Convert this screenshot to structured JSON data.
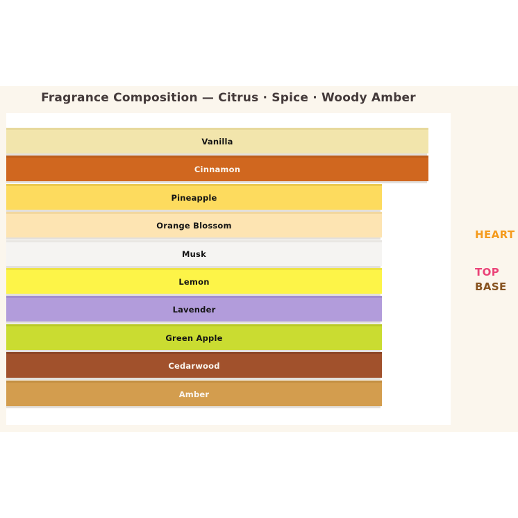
{
  "page": {
    "title": "Fragrance Composition — Citrus · Spice · Woody Amber",
    "band_background": "#FBF6ED",
    "card_background": "#FFFFFF",
    "title_color": "#443A3A",
    "shadow_color": "#E3E0DC"
  },
  "chart_data": {
    "type": "bar",
    "orientation": "horizontal",
    "title": "Fragrance Composition — Citrus · Spice · Woody Amber",
    "categories": [
      "Vanilla",
      "Cinnamon",
      "Pineapple",
      "Orange Blossom",
      "Musk",
      "Lemon",
      "Lavender",
      "Green Apple",
      "Cedarwood",
      "Amber"
    ],
    "values_relative_pct": [
      100,
      100,
      89,
      89,
      89,
      89,
      89,
      89,
      89,
      89
    ],
    "bar_colors": [
      "#F2E5AC",
      "#D0671F",
      "#FDDB5E",
      "#FDE4B2",
      "#F5F4F2",
      "#FDF448",
      "#B29CDB",
      "#CADC31",
      "#A1512C",
      "#D39D4E"
    ],
    "axis": "none",
    "grid": false,
    "legend_position": "right",
    "legend": [
      {
        "label": "HEART",
        "color": "#F59B1D"
      },
      {
        "label": "TOP",
        "color": "#EA4378"
      },
      {
        "label": "BASE",
        "color": "#875320"
      }
    ]
  },
  "notes": [
    {
      "label": "Vanilla",
      "fill": "#F2E5AC",
      "edge": "#E7D99C",
      "text_color": "#141414",
      "length": "608px"
    },
    {
      "label": "Cinnamon",
      "fill": "#D0671F",
      "edge": "#BC5D1A",
      "text_color": "#FAF5EE",
      "length": "608px"
    },
    {
      "label": "Pineapple",
      "fill": "#FDDB5E",
      "edge": "#ECC94E",
      "text_color": "#141414",
      "length": "541px"
    },
    {
      "label": "Orange Blossom",
      "fill": "#FDE4B2",
      "edge": "#F2D79E",
      "text_color": "#141414",
      "length": "541px"
    },
    {
      "label": "Musk",
      "fill": "#F5F4F2",
      "edge": "#E8E6E2",
      "text_color": "#141414",
      "length": "541px"
    },
    {
      "label": "Lemon",
      "fill": "#FDF448",
      "edge": "#EDE342",
      "text_color": "#141414",
      "length": "541px"
    },
    {
      "label": "Lavender",
      "fill": "#B29CDB",
      "edge": "#A18CCE",
      "text_color": "#141414",
      "length": "541px"
    },
    {
      "label": "Green Apple",
      "fill": "#CADC31",
      "edge": "#B9C929",
      "text_color": "#141414",
      "length": "541px"
    },
    {
      "label": "Cedarwood",
      "fill": "#A1512C",
      "edge": "#8D4626",
      "text_color": "#FAF5EE",
      "length": "541px"
    },
    {
      "label": "Amber",
      "fill": "#D39D4E",
      "edge": "#C28E41",
      "text_color": "#FAF5EE",
      "length": "541px"
    }
  ],
  "legend": {
    "heart_label": "HEART",
    "heart_color": "#F59B1D",
    "top_label": "TOP",
    "top_color": "#EA4378",
    "base_label": "BASE",
    "base_color": "#875320"
  }
}
